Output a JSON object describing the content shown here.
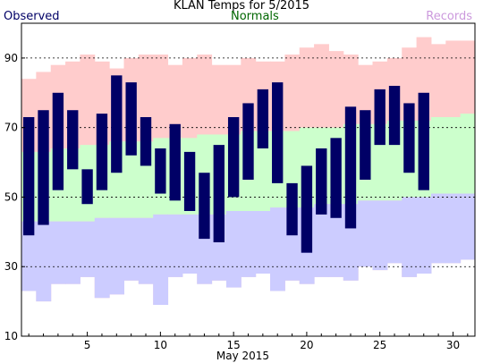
{
  "chart_data": {
    "type": "bar",
    "title": "KLAN Temps for 5/2015",
    "xlabel": "May 2015",
    "ylabel": "",
    "xlim": [
      1,
      31
    ],
    "ylim": [
      10,
      100
    ],
    "yticks": [
      10,
      30,
      50,
      70,
      90
    ],
    "xticks": [
      5,
      10,
      15,
      20,
      25,
      30
    ],
    "grid_lines_y": [
      30,
      50,
      70,
      90
    ],
    "grid": "dashed horizontal",
    "legend": [
      {
        "name": "Observed",
        "color": "#000066",
        "placement": "top-left"
      },
      {
        "name": "Normals",
        "color": "#006600",
        "placement": "top-center"
      },
      {
        "name": "Records",
        "color": "#cc99dd",
        "placement": "top-right"
      }
    ],
    "days": [
      1,
      2,
      3,
      4,
      5,
      6,
      7,
      8,
      9,
      10,
      11,
      12,
      13,
      14,
      15,
      16,
      17,
      18,
      19,
      20,
      21,
      22,
      23,
      24,
      25,
      26,
      27,
      28,
      29,
      30,
      31
    ],
    "series": [
      {
        "name": "Observed",
        "type": "floating-bar",
        "color": "#000066",
        "high": [
          73,
          75,
          80,
          75,
          58,
          74,
          85,
          83,
          73,
          64,
          71,
          63,
          57,
          65,
          73,
          77,
          81,
          83,
          54,
          59,
          64,
          67,
          76,
          75,
          81,
          82,
          77,
          80,
          null,
          null,
          null
        ],
        "low": [
          39,
          42,
          52,
          58,
          48,
          52,
          57,
          62,
          59,
          51,
          49,
          46,
          38,
          37,
          50,
          55,
          64,
          54,
          39,
          34,
          45,
          44,
          41,
          55,
          65,
          65,
          57,
          52,
          null,
          null,
          null
        ]
      },
      {
        "name": "Normals",
        "type": "band",
        "color": "#ccffcc",
        "high": [
          63,
          63,
          64,
          64,
          65,
          65,
          66,
          66,
          66,
          67,
          67,
          67,
          68,
          68,
          68,
          69,
          69,
          69,
          69,
          70,
          70,
          70,
          71,
          71,
          71,
          72,
          72,
          72,
          73,
          73,
          74
        ],
        "low": [
          43,
          43,
          43,
          43,
          43,
          44,
          44,
          44,
          44,
          45,
          45,
          45,
          45,
          45,
          46,
          46,
          46,
          47,
          47,
          47,
          48,
          48,
          48,
          49,
          49,
          49,
          50,
          50,
          51,
          51,
          51
        ]
      },
      {
        "name": "Records",
        "type": "band",
        "color": "#ffcccc",
        "high": [
          84,
          86,
          88,
          89,
          91,
          89,
          87,
          90,
          91,
          91,
          88,
          90,
          91,
          88,
          88,
          90,
          89,
          89,
          91,
          93,
          94,
          92,
          91,
          88,
          89,
          90,
          93,
          96,
          94,
          95,
          95
        ],
        "low": [
          23,
          20,
          25,
          25,
          27,
          21,
          22,
          26,
          25,
          19,
          27,
          28,
          25,
          26,
          24,
          27,
          28,
          23,
          26,
          25,
          27,
          27,
          26,
          30,
          29,
          31,
          27,
          28,
          31,
          31,
          32
        ]
      }
    ]
  }
}
